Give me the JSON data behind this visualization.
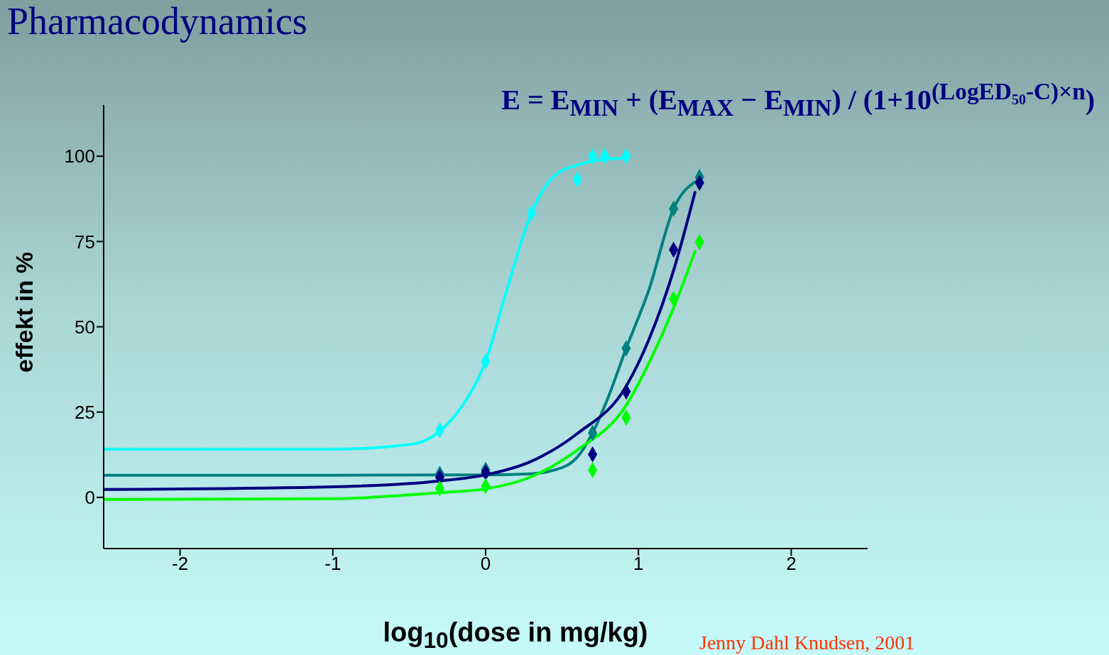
{
  "chart_data": {
    "type": "line",
    "title": "Pharmacodynamics",
    "xlabel": "log$_{10}$(dose in mg/kg)",
    "ylabel": "effekt in %",
    "annotations": [
      "E = E$_{MIN}$ + (E$_{MAX}$ − E$_{MIN}$) / (1+10$^{(LogED₅₀-C)×n}$)",
      "Jenny Dahl Knudsen, 2001"
    ],
    "xlim": [
      -2.5,
      2.5
    ],
    "xticks": [
      -2,
      -1,
      0,
      1,
      2
    ],
    "ylim": [
      -15,
      115
    ],
    "yticks": [
      0,
      25,
      50,
      75,
      100
    ],
    "line_style": "solid",
    "series": [
      {
        "color": "#00ffff",
        "marker": "none",
        "x": [
          -2.5,
          -1,
          -0.48,
          -0.3,
          -0.16,
          0,
          0.14,
          0.3,
          0.45,
          0.6,
          0.76,
          0.92
        ],
        "values": [
          14.1,
          14.1,
          15.6,
          19.4,
          26.4,
          39.9,
          61,
          83.4,
          94.2,
          97.4,
          99,
          99.4
        ]
      },
      {
        "color": "#008080",
        "marker": "none",
        "x": [
          -2.5,
          -1,
          0,
          0.29,
          0.45,
          0.6,
          0.7,
          0.8,
          0.92,
          1.07,
          1.23,
          1.4
        ],
        "values": [
          6.5,
          6.5,
          6.6,
          6.9,
          8,
          11.8,
          18.9,
          29.1,
          43.7,
          61,
          84.6,
          93.2
        ]
      },
      {
        "color": "#000080",
        "marker": "none",
        "x": [
          -2.5,
          -1,
          -0.3,
          0,
          0.29,
          0.6,
          0.92,
          1.07,
          1.23,
          1.37
        ],
        "values": [
          2.3,
          3.1,
          4.8,
          6.6,
          10.4,
          18.7,
          32.6,
          46.4,
          66.5,
          89.4
        ]
      },
      {
        "color": "#00ff00",
        "marker": "none",
        "x": [
          -2.5,
          -1,
          -0.3,
          0,
          0.29,
          0.6,
          0.92,
          1.07,
          1.23,
          1.37
        ],
        "values": [
          -0.6,
          -0.4,
          1.4,
          2.5,
          5.9,
          13.9,
          27,
          39.5,
          55.5,
          72.1
        ]
      },
      {
        "type": "scatter",
        "color": "#00ffff",
        "marker": "diamond",
        "x": [
          -0.3,
          0,
          0.3,
          0.6,
          0.7,
          0.78,
          0.92
        ],
        "values": [
          19.7,
          39.9,
          83.3,
          93.2,
          100,
          100,
          100
        ]
      },
      {
        "type": "scatter",
        "color": "#008080",
        "marker": "diamond",
        "x": [
          -0.3,
          0,
          0.7,
          0.92,
          1.23,
          1.4
        ],
        "values": [
          6.9,
          8.1,
          18.9,
          43.7,
          84.6,
          93.9
        ]
      },
      {
        "type": "scatter",
        "color": "#000080",
        "marker": "diamond",
        "x": [
          -0.3,
          0,
          0.7,
          0.92,
          1.23,
          1.4
        ],
        "values": [
          5.9,
          7.3,
          12.6,
          31,
          72.6,
          92.2
        ]
      },
      {
        "type": "scatter",
        "color": "#00ff00",
        "marker": "diamond",
        "x": [
          -0.3,
          0,
          0.7,
          0.92,
          1.23,
          1.4
        ],
        "values": [
          2.6,
          3.3,
          8,
          23.4,
          58.2,
          74.8
        ]
      }
    ]
  }
}
